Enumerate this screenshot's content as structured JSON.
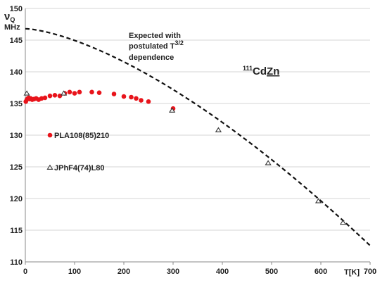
{
  "chart_data": {
    "type": "scatter",
    "xlim": [
      0,
      700
    ],
    "ylim": [
      110,
      150
    ],
    "x_ticks": [
      0,
      100,
      200,
      300,
      400,
      500,
      600,
      700
    ],
    "y_ticks": [
      110,
      115,
      120,
      125,
      130,
      135,
      140,
      145,
      150
    ],
    "xlabel": "T[K]",
    "ylabel": {
      "symbol": "ν",
      "subscript": "Q",
      "unit": "MHz"
    },
    "grid": "horizontal",
    "series": [
      {
        "name": "PLA108(85)210",
        "marker": "filled-circle",
        "color": "#e8141b",
        "points": [
          [
            1,
            135.3
          ],
          [
            3,
            135.6
          ],
          [
            5,
            135.8
          ],
          [
            7,
            135.9
          ],
          [
            9,
            135.7
          ],
          [
            11,
            135.8
          ],
          [
            14,
            135.6
          ],
          [
            18,
            135.7
          ],
          [
            22,
            135.8
          ],
          [
            27,
            135.6
          ],
          [
            33,
            135.8
          ],
          [
            40,
            135.9
          ],
          [
            50,
            136.2
          ],
          [
            60,
            136.3
          ],
          [
            70,
            136.2
          ],
          [
            80,
            136.6
          ],
          [
            90,
            136.8
          ],
          [
            100,
            136.6
          ],
          [
            110,
            136.8
          ],
          [
            135,
            136.8
          ],
          [
            150,
            136.7
          ],
          [
            180,
            136.5
          ],
          [
            200,
            136.1
          ],
          [
            215,
            136.0
          ],
          [
            225,
            135.8
          ],
          [
            235,
            135.5
          ],
          [
            250,
            135.3
          ],
          [
            300,
            134.2
          ]
        ]
      },
      {
        "name": "JPhF4(74)L80",
        "marker": "open-triangle",
        "color": "#333333",
        "points": [
          [
            3,
            136.6
          ],
          [
            78,
            136.6
          ],
          [
            298,
            133.9
          ],
          [
            392,
            130.8
          ],
          [
            493,
            125.6
          ],
          [
            595,
            119.6
          ],
          [
            645,
            116.2
          ]
        ]
      },
      {
        "name": "Expected with postulated T3/2 dependence",
        "line": "dashed",
        "color": "#111111",
        "function": {
          "form": "nu0 * (1 - b * T^1.5)",
          "nu0": 146.8,
          "b": 1.259e-05,
          "T_range": [
            0,
            700
          ]
        }
      }
    ],
    "annotations": {
      "expected_line1": "Expected with",
      "expected_line2": "postulated T",
      "expected_exp": "3/2",
      "expected_line3": "dependence",
      "compound_mass": "111",
      "compound_cd": "Cd",
      "compound_zn": "Zn"
    }
  }
}
